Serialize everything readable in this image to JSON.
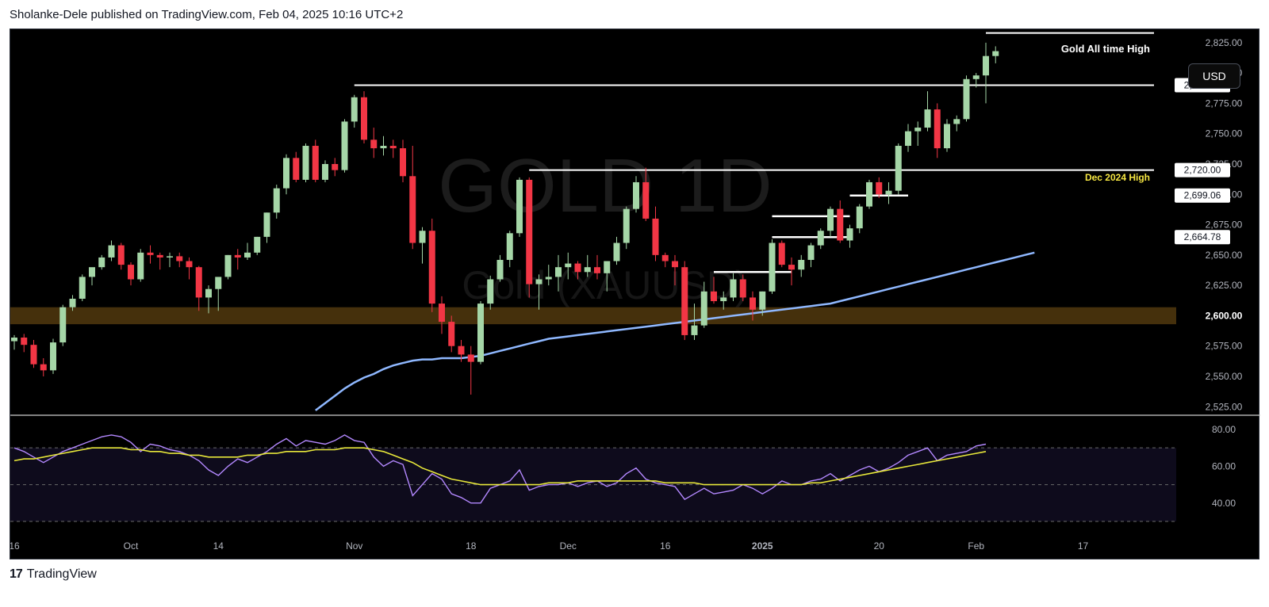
{
  "header": {
    "attribution": "Sholanke-Dele published on TradingView.com, Feb 04, 2025 10:16 UTC+2"
  },
  "footer": {
    "logo_glyph": "17",
    "brand": "TradingView"
  },
  "currency_button": "USD",
  "watermark": {
    "symbol": "GOLD, 1D",
    "description": "Gold (XAUUSD)"
  },
  "colors": {
    "up": "#a5d6a7",
    "down": "#f23645",
    "ma": "#8fb8ff",
    "rsi": "#b388ff",
    "rsi_ma": "#e8e83a",
    "zone": "#5c4010",
    "annotation_yellow": "#f5e642"
  },
  "annotations": {
    "ath_label": "Gold All time High",
    "dec_label": "Dec 2024 High"
  },
  "price_labels": [
    "2,790.00",
    "2,720.00",
    "2,699.06",
    "2,664.78",
    "2,600.00"
  ],
  "chart_data": {
    "type": "candlestick",
    "symbol": "XAUUSD",
    "timeframe": "1D",
    "ylim": [
      2518,
      2836
    ],
    "y_ticks": [
      2525,
      2550,
      2575,
      2600,
      2625,
      2650,
      2675,
      2700,
      2725,
      2750,
      2775,
      2800,
      2825
    ],
    "y_tick_labels": [
      "2,525.00",
      "2,550.00",
      "2,575.00",
      "2,600.00",
      "2,625.00",
      "2,650.00",
      "2,675.00",
      "2,700.00",
      "2,725.00",
      "2,750.00",
      "2,775.00",
      "2,800.00",
      "2,825.00"
    ],
    "x_ticks": [
      {
        "i": 0,
        "label": "16"
      },
      {
        "i": 12,
        "label": "Oct"
      },
      {
        "i": 21,
        "label": "14"
      },
      {
        "i": 35,
        "label": "Nov"
      },
      {
        "i": 47,
        "label": "18"
      },
      {
        "i": 57,
        "label": "Dec"
      },
      {
        "i": 67,
        "label": "16"
      },
      {
        "i": 77,
        "label": "2025"
      },
      {
        "i": 89,
        "label": "20"
      },
      {
        "i": 99,
        "label": "Feb"
      },
      {
        "i": 110,
        "label": "17"
      }
    ],
    "candles": [
      [
        2579,
        2584,
        2572,
        2582
      ],
      [
        2582,
        2585,
        2570,
        2576
      ],
      [
        2576,
        2580,
        2557,
        2560
      ],
      [
        2560,
        2565,
        2550,
        2555
      ],
      [
        2555,
        2581,
        2552,
        2578
      ],
      [
        2578,
        2609,
        2575,
        2607
      ],
      [
        2607,
        2617,
        2604,
        2614
      ],
      [
        2614,
        2634,
        2612,
        2632
      ],
      [
        2632,
        2638,
        2625,
        2640
      ],
      [
        2640,
        2650,
        2638,
        2648
      ],
      [
        2648,
        2662,
        2645,
        2658
      ],
      [
        2658,
        2660,
        2638,
        2642
      ],
      [
        2642,
        2644,
        2625,
        2630
      ],
      [
        2630,
        2655,
        2628,
        2652
      ],
      [
        2652,
        2658,
        2643,
        2650
      ],
      [
        2650,
        2652,
        2638,
        2648
      ],
      [
        2648,
        2652,
        2640,
        2649
      ],
      [
        2649,
        2652,
        2640,
        2645
      ],
      [
        2645,
        2648,
        2630,
        2640
      ],
      [
        2640,
        2641,
        2604,
        2615
      ],
      [
        2615,
        2625,
        2602,
        2622
      ],
      [
        2622,
        2630,
        2604,
        2632
      ],
      [
        2632,
        2650,
        2630,
        2650
      ],
      [
        2650,
        2655,
        2638,
        2648
      ],
      [
        2648,
        2660,
        2646,
        2652
      ],
      [
        2652,
        2665,
        2650,
        2665
      ],
      [
        2665,
        2685,
        2660,
        2685
      ],
      [
        2685,
        2708,
        2680,
        2705
      ],
      [
        2705,
        2733,
        2700,
        2730
      ],
      [
        2730,
        2735,
        2710,
        2712
      ],
      [
        2712,
        2742,
        2710,
        2740
      ],
      [
        2740,
        2745,
        2710,
        2712
      ],
      [
        2712,
        2728,
        2710,
        2725
      ],
      [
        2725,
        2730,
        2715,
        2720
      ],
      [
        2720,
        2762,
        2718,
        2760
      ],
      [
        2760,
        2782,
        2755,
        2780
      ],
      [
        2780,
        2785,
        2742,
        2745
      ],
      [
        2745,
        2755,
        2730,
        2738
      ],
      [
        2738,
        2748,
        2732,
        2740
      ],
      [
        2740,
        2745,
        2730,
        2738
      ],
      [
        2738,
        2745,
        2710,
        2715
      ],
      [
        2715,
        2740,
        2655,
        2660
      ],
      [
        2660,
        2673,
        2643,
        2670
      ],
      [
        2670,
        2680,
        2603,
        2610
      ],
      [
        2610,
        2616,
        2585,
        2595
      ],
      [
        2595,
        2600,
        2570,
        2575
      ],
      [
        2575,
        2580,
        2562,
        2568
      ],
      [
        2568,
        2575,
        2535,
        2562
      ],
      [
        2562,
        2612,
        2560,
        2610
      ],
      [
        2610,
        2633,
        2605,
        2630
      ],
      [
        2630,
        2650,
        2628,
        2646
      ],
      [
        2646,
        2670,
        2640,
        2668
      ],
      [
        2668,
        2714,
        2665,
        2712
      ],
      [
        2712,
        2714,
        2615,
        2626
      ],
      [
        2626,
        2634,
        2605,
        2630
      ],
      [
        2630,
        2642,
        2625,
        2632
      ],
      [
        2632,
        2650,
        2620,
        2640
      ],
      [
        2640,
        2652,
        2630,
        2643
      ],
      [
        2643,
        2645,
        2630,
        2636
      ],
      [
        2636,
        2650,
        2632,
        2640
      ],
      [
        2640,
        2650,
        2630,
        2635
      ],
      [
        2635,
        2645,
        2620,
        2645
      ],
      [
        2645,
        2665,
        2642,
        2660
      ],
      [
        2660,
        2690,
        2655,
        2688
      ],
      [
        2688,
        2715,
        2685,
        2710
      ],
      [
        2710,
        2722,
        2678,
        2680
      ],
      [
        2680,
        2690,
        2645,
        2650
      ],
      [
        2650,
        2652,
        2640,
        2645
      ],
      [
        2645,
        2650,
        2625,
        2640
      ],
      [
        2640,
        2645,
        2580,
        2584
      ],
      [
        2584,
        2610,
        2580,
        2592
      ],
      [
        2592,
        2628,
        2590,
        2620
      ],
      [
        2620,
        2632,
        2610,
        2612
      ],
      [
        2612,
        2620,
        2605,
        2615
      ],
      [
        2615,
        2635,
        2612,
        2630
      ],
      [
        2630,
        2634,
        2612,
        2615
      ],
      [
        2615,
        2620,
        2596,
        2605
      ],
      [
        2605,
        2620,
        2600,
        2620
      ],
      [
        2620,
        2663,
        2618,
        2660
      ],
      [
        2660,
        2662,
        2640,
        2642
      ],
      [
        2642,
        2648,
        2625,
        2638
      ],
      [
        2638,
        2650,
        2632,
        2646
      ],
      [
        2646,
        2660,
        2640,
        2658
      ],
      [
        2658,
        2672,
        2655,
        2670
      ],
      [
        2670,
        2690,
        2665,
        2688
      ],
      [
        2688,
        2695,
        2660,
        2662
      ],
      [
        2662,
        2675,
        2656,
        2672
      ],
      [
        2672,
        2692,
        2668,
        2690
      ],
      [
        2690,
        2712,
        2688,
        2710
      ],
      [
        2710,
        2714,
        2697,
        2700
      ],
      [
        2700,
        2710,
        2692,
        2703
      ],
      [
        2703,
        2742,
        2700,
        2740
      ],
      [
        2740,
        2758,
        2735,
        2752
      ],
      [
        2752,
        2760,
        2740,
        2755
      ],
      [
        2755,
        2785,
        2752,
        2770
      ],
      [
        2770,
        2775,
        2730,
        2738
      ],
      [
        2738,
        2762,
        2735,
        2758
      ],
      [
        2758,
        2765,
        2752,
        2762
      ],
      [
        2762,
        2798,
        2760,
        2795
      ],
      [
        2795,
        2800,
        2788,
        2798
      ],
      [
        2798,
        2825,
        2775,
        2814
      ],
      [
        2814,
        2822,
        2808,
        2818
      ]
    ],
    "ma_series": {
      "name": "",
      "start_index": 31,
      "values": [
        2522,
        2528,
        2534,
        2540,
        2545,
        2549,
        2552,
        2556,
        2559,
        2561,
        2563,
        2564,
        2564,
        2565,
        2565,
        2565,
        2566,
        2567,
        2569,
        2571,
        2573,
        2575,
        2577,
        2579,
        2581,
        2582,
        2583,
        2584,
        2585,
        2586,
        2587,
        2588,
        2589,
        2590,
        2591,
        2592,
        2593,
        2594,
        2595,
        2596,
        2597,
        2598,
        2599,
        2600,
        2601,
        2602,
        2603,
        2604,
        2605,
        2606,
        2607,
        2608,
        2609,
        2610,
        2612,
        2614,
        2616,
        2618,
        2620,
        2622,
        2624,
        2626,
        2628,
        2630,
        2632,
        2634,
        2636,
        2638,
        2640,
        2642,
        2644,
        2646,
        2648,
        2650,
        2652
      ]
    },
    "levels": [
      {
        "name": "ath",
        "price": 2833,
        "from_index": 100,
        "label": "Gold All time High"
      },
      {
        "name": "2790",
        "price": 2790,
        "from_index": 35,
        "label": "2,790.00"
      },
      {
        "name": "dec-high",
        "price": 2720,
        "from_index": 53,
        "label": "Dec 2024 High"
      },
      {
        "name": "2699",
        "price": 2699.06,
        "from_index": 86,
        "to_index": 92
      },
      {
        "name": "2680",
        "price": 2682,
        "from_index": 78,
        "to_index": 86
      },
      {
        "name": "2662",
        "price": 2664.78,
        "from_index": 78,
        "to_index": 86
      },
      {
        "name": "2635",
        "price": 2636,
        "from_index": 72,
        "to_index": 80
      }
    ],
    "support_zone": {
      "low": 2593,
      "high": 2607
    },
    "rsi": {
      "ylim": [
        27,
        86
      ],
      "y_ticks": [
        40,
        60,
        80
      ],
      "y_tick_labels": [
        "40.00",
        "60.00",
        "80.00"
      ],
      "bands": [
        30,
        50,
        70
      ],
      "values": [
        70,
        68,
        65,
        62,
        65,
        68,
        70,
        72,
        74,
        76,
        77,
        76,
        73,
        68,
        72,
        71,
        69,
        68,
        66,
        63,
        58,
        55,
        60,
        64,
        62,
        65,
        68,
        72,
        75,
        71,
        74,
        73,
        72,
        74,
        77,
        74,
        73,
        65,
        60,
        63,
        61,
        44,
        50,
        56,
        53,
        45,
        43,
        40,
        40,
        48,
        50,
        52,
        58,
        47,
        49,
        50,
        50,
        51,
        49,
        51,
        52,
        49,
        51,
        56,
        59,
        53,
        51,
        50,
        49,
        42,
        45,
        48,
        45,
        46,
        47,
        50,
        48,
        45,
        48,
        52,
        50,
        50,
        52,
        53,
        56,
        52,
        55,
        58,
        60,
        57,
        59,
        62,
        66,
        68,
        70,
        63,
        66,
        67,
        68,
        71,
        72
      ],
      "ma_values": [
        63,
        64,
        64,
        65,
        66,
        67,
        68,
        69,
        70,
        70,
        70,
        70,
        69,
        69,
        68,
        68,
        67,
        67,
        66,
        66,
        65,
        65,
        65,
        65,
        66,
        66,
        67,
        67,
        68,
        68,
        68,
        69,
        69,
        69,
        70,
        70,
        70,
        69,
        68,
        66,
        64,
        62,
        59,
        57,
        55,
        53,
        52,
        51,
        50,
        50,
        50,
        50,
        50,
        50,
        50,
        51,
        51,
        51,
        52,
        52,
        52,
        52,
        52,
        52,
        52,
        52,
        52,
        51,
        51,
        51,
        51,
        50,
        50,
        50,
        50,
        50,
        50,
        50,
        50,
        50,
        50,
        50,
        51,
        51,
        52,
        53,
        54,
        55,
        56,
        57,
        58,
        59,
        60,
        61,
        62,
        63,
        64,
        65,
        66,
        67,
        68
      ]
    }
  }
}
